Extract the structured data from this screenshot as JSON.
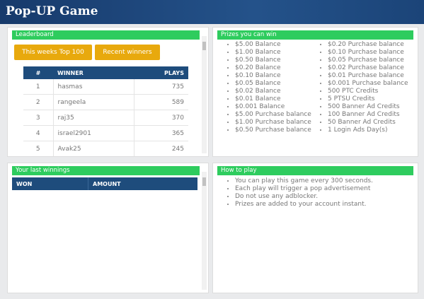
{
  "header": {
    "title": "Pop-UP Game"
  },
  "leaderboard": {
    "title": "Leaderboard",
    "tabs": [
      "This weeks Top 100",
      "Recent winners"
    ],
    "columns": [
      "#",
      "WINNER",
      "PLAYS"
    ],
    "rows": [
      [
        1,
        "hasmas",
        735
      ],
      [
        2,
        "rangeela",
        589
      ],
      [
        3,
        "raj35",
        370
      ],
      [
        4,
        "israel2901",
        365
      ],
      [
        5,
        "Avak25",
        245
      ]
    ]
  },
  "prizes": {
    "title": "Prizes you can win",
    "columns": [
      [
        "$5.00 Balance",
        "$1.00 Balance",
        "$0.50 Balance",
        "$0.20 Balance",
        "$0.10 Balance",
        "$0.05 Balance",
        "$0.02 Balance",
        "$0.01 Balance",
        "$0.001 Balance",
        "$5.00 Purchase balance",
        "$1.00 Purchase balance",
        "$0.50 Purchase balance"
      ],
      [
        "$0.20 Purchase balance",
        "$0.10 Purchase balance",
        "$0.05 Purchase balance",
        "$0.02 Purchase balance",
        "$0.01 Purchase balance",
        "$0.001 Purchase balance",
        "500 PTC Credits",
        "5 PTSU Credits",
        "500 Banner Ad Credits",
        "100 Banner Ad Credits",
        "50 Banner Ad Credits",
        "1 Login Ads Day(s)"
      ]
    ]
  },
  "winnings": {
    "title": "Your last winnings",
    "columns": [
      "WON",
      "AMOUNT"
    ]
  },
  "how_to_play": {
    "title": "How to play",
    "items": [
      "You can play this game every 300 seconds.",
      "Each play will trigger a pop advertisement",
      "Do not use any adblocker.",
      "Prizes are added to your account instant."
    ]
  }
}
